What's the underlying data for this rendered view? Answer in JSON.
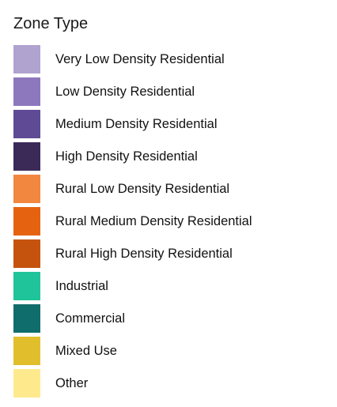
{
  "legend": {
    "title": "Zone Type",
    "items": [
      {
        "label": "Very Low Density Residential",
        "color": "#b0a3cf",
        "icon": "color-swatch"
      },
      {
        "label": "Low Density Residential",
        "color": "#8e78bd",
        "icon": "color-swatch"
      },
      {
        "label": "Medium Density Residential",
        "color": "#5f4a95",
        "icon": "color-swatch"
      },
      {
        "label": "High Density Residential",
        "color": "#3b2a58",
        "icon": "color-swatch"
      },
      {
        "label": "Rural Low Density Residential",
        "color": "#f28740",
        "icon": "color-swatch"
      },
      {
        "label": "Rural Medium Density Residential",
        "color": "#e56210",
        "icon": "color-swatch"
      },
      {
        "label": "Rural High Density Residential",
        "color": "#c5530e",
        "icon": "color-swatch"
      },
      {
        "label": "Industrial",
        "color": "#1fc49a",
        "icon": "color-swatch"
      },
      {
        "label": "Commercial",
        "color": "#0f6d6b",
        "icon": "color-swatch"
      },
      {
        "label": "Mixed Use",
        "color": "#e1bf2c",
        "icon": "color-swatch"
      },
      {
        "label": "Other",
        "color": "#ffe98d",
        "icon": "color-swatch"
      }
    ]
  }
}
